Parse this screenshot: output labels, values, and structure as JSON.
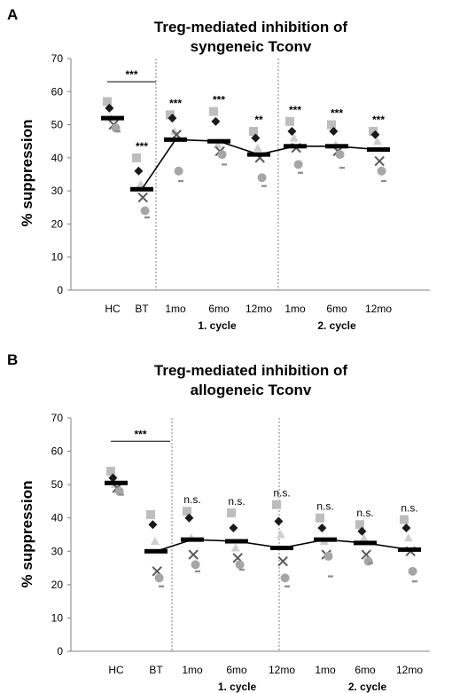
{
  "chart_data": [
    {
      "panel_label": "A",
      "type": "scatter",
      "title": "Treg-mediated inhibition of syngeneic Tconv",
      "title_lines": [
        "Treg-mediated inhibition of",
        "syngeneic Tconv"
      ],
      "ylabel": "% suppression",
      "ylim": [
        0,
        70
      ],
      "yticks": [
        0,
        10,
        20,
        30,
        40,
        50,
        60,
        70
      ],
      "categories": [
        "HC",
        "BT",
        "1mo",
        "6mo",
        "12mo",
        "1mo",
        "6mo",
        "12mo"
      ],
      "groups": [
        {
          "label": "1. cycle",
          "span": [
            2,
            4
          ]
        },
        {
          "label": "2. cycle",
          "span": [
            5,
            7
          ]
        }
      ],
      "separators_after": [
        1,
        4
      ],
      "line_connects_from": 1,
      "means": [
        52,
        30.5,
        45.5,
        45,
        41,
        43.5,
        43.5,
        42.5
      ],
      "significance": [
        "",
        "***",
        "***",
        "***",
        "**",
        "***",
        "***",
        "***"
      ],
      "significance_bracket": {
        "from": 0,
        "to": 1,
        "label": "***"
      },
      "points": [
        [
          57,
          55,
          52,
          50,
          49,
          48
        ],
        [
          40,
          36,
          32,
          28,
          24,
          22
        ],
        [
          53,
          52,
          48,
          47,
          36,
          33
        ],
        [
          54,
          51,
          44,
          42,
          41,
          38
        ],
        [
          48,
          46,
          43,
          40,
          34,
          31.5
        ],
        [
          51,
          48,
          46,
          43,
          38,
          35.5
        ],
        [
          50,
          48,
          44,
          42,
          41,
          37
        ],
        [
          48,
          47,
          45,
          39,
          36,
          33
        ]
      ]
    },
    {
      "panel_label": "B",
      "type": "scatter",
      "title": "Treg-mediated inhibition of allogeneic Tconv",
      "title_lines": [
        "Treg-mediated inhibition of",
        "allogeneic Tconv"
      ],
      "ylabel": "% suppression",
      "ylim": [
        0,
        70
      ],
      "yticks": [
        0,
        10,
        20,
        30,
        40,
        50,
        60,
        70
      ],
      "categories": [
        "HC",
        "BT",
        "1mo",
        "6mo",
        "12mo",
        "1mo",
        "6mo",
        "12mo"
      ],
      "groups": [
        {
          "label": "1. cycle",
          "span": [
            2,
            4
          ]
        },
        {
          "label": "2. cycle",
          "span": [
            5,
            7
          ]
        }
      ],
      "separators_after": [
        1,
        4
      ],
      "line_connects_from": 1,
      "means": [
        50.5,
        30,
        33.5,
        33,
        31,
        33.5,
        32.5,
        30.5
      ],
      "significance": [
        "",
        "",
        "n.s.",
        "n.s.",
        "n.s.",
        "n.s.",
        "n.s.",
        "n.s."
      ],
      "significance_bracket": {
        "from": 0,
        "to": 1,
        "label": "***"
      },
      "points": [
        [
          54,
          52,
          50,
          49,
          48,
          47
        ],
        [
          41,
          38,
          33,
          24,
          22,
          19.5
        ],
        [
          42,
          40,
          34,
          29,
          26,
          24
        ],
        [
          41.5,
          37,
          31,
          28,
          26,
          24.5
        ],
        [
          44,
          39,
          35,
          27,
          22,
          19.5
        ],
        [
          40,
          37,
          33,
          29,
          28.5,
          22.5
        ],
        [
          38,
          36,
          34,
          29,
          27,
          26.5
        ],
        [
          39.5,
          37,
          34,
          30,
          24,
          21
        ]
      ]
    }
  ],
  "marker_shapes": [
    "square",
    "diamond",
    "triangle",
    "cross",
    "circle",
    "dash"
  ],
  "marker_colors": [
    "#bdbdbd",
    "#1a1a1a",
    "#cfcfcf",
    "#595959",
    "#a6a6a6",
    "#8c8c8c"
  ],
  "colors": {
    "mean_bar": "#000000",
    "line": "#000000",
    "axis": "#7f7f7f",
    "separator": "#7f7f7f",
    "text": "#000000"
  }
}
